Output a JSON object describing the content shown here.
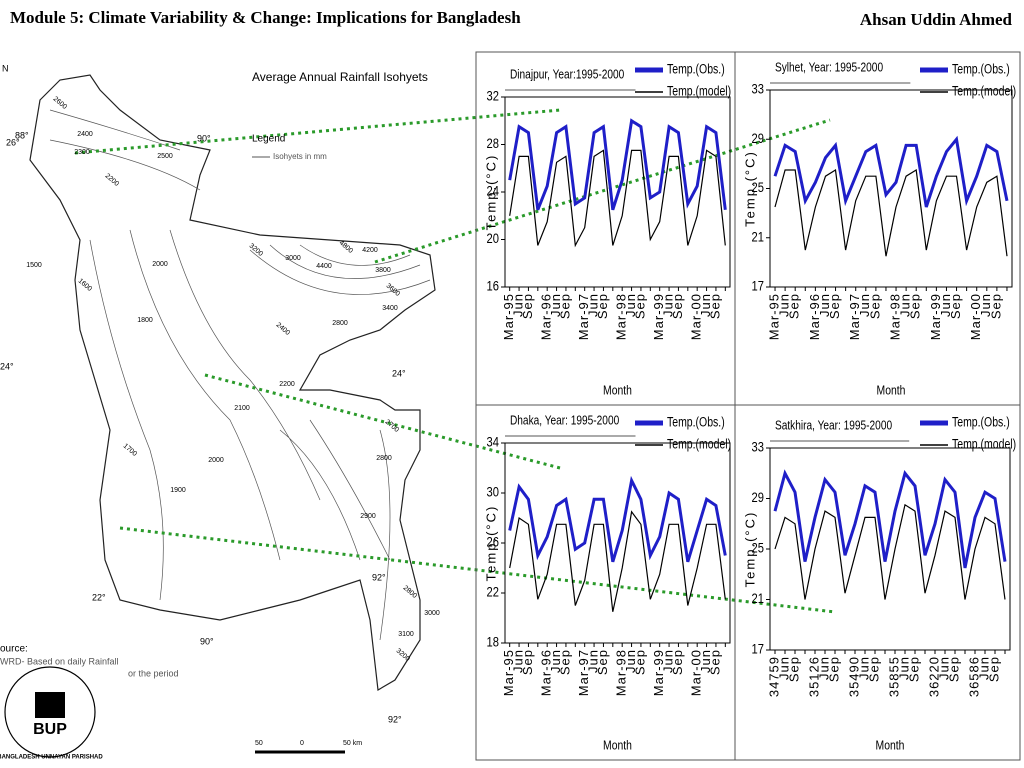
{
  "header": {
    "title": "Module 5: Climate Variability & Change: Implications for Bangladesh",
    "author": "Ahsan Uddin Ahmed"
  },
  "map": {
    "title": "Average Annual Rainfall Isohyets",
    "legend_title": "Legend",
    "legend_item": "Isohyets in mm",
    "source": "ource:",
    "source_line1": "WRD- Based on daily Rainfall",
    "source_line2": "or the period",
    "logo": "BUP",
    "logo_ring": "BANGLADESH UNNAYAN PARISHAD",
    "labels": [
      "2600",
      "2400",
      "2300",
      "2200",
      "2500",
      "1500",
      "1600",
      "1800",
      "2000",
      "3200",
      "3000",
      "4400",
      "4800",
      "4200",
      "3800",
      "3600",
      "3400",
      "2800",
      "2400",
      "2200",
      "2100",
      "1700",
      "1900",
      "2000",
      "2700",
      "2800",
      "2900",
      "2800",
      "3000",
      "3100",
      "3200"
    ],
    "coords": [
      "26°",
      "88°",
      "90°",
      "24°",
      "24°",
      "22°",
      "90°",
      "92°",
      "92°",
      "N"
    ],
    "scale": [
      "50",
      "0",
      "50 km"
    ]
  },
  "chart_data": [
    {
      "type": "line",
      "title": "Dinajpur, Year:1995-2000",
      "xlabel": "Month",
      "ylabel": "Temp.(°C)",
      "categories": [
        "Mar-95",
        "Jun",
        "Sep",
        null,
        "Mar-96",
        "Jun",
        "Sep",
        null,
        "Mar-97",
        "Jun",
        "Sep",
        null,
        "Mar-98",
        "Jun",
        "Sep",
        null,
        "Mar-99",
        "Jun",
        "Sep",
        null,
        "Mar-00",
        "Jun",
        "Sep",
        null
      ],
      "ylim": [
        16,
        32
      ],
      "yticks": [
        16,
        20,
        24,
        28,
        32
      ],
      "legend": "upper right",
      "series": [
        {
          "name": "Temp.(Obs.)",
          "color": "#1f1fc8",
          "values": [
            25,
            29.5,
            29,
            22.5,
            24.5,
            29,
            29.5,
            23,
            23.5,
            29,
            29.5,
            22.5,
            25,
            30,
            29.5,
            23.5,
            24,
            29.5,
            29,
            23,
            24.5,
            29.5,
            29,
            22.5
          ]
        },
        {
          "name": "Temp.(model)",
          "color": "#000000",
          "values": [
            22,
            27,
            27,
            19.5,
            21.5,
            26.5,
            27,
            19.5,
            21,
            27,
            27.5,
            19.5,
            22,
            27.5,
            27.5,
            20,
            21.5,
            27,
            27,
            19.5,
            22,
            27.5,
            27,
            19.5
          ]
        }
      ]
    },
    {
      "type": "line",
      "title": "Sylhet, Year: 1995-2000",
      "xlabel": "Month",
      "ylabel": "Temp.(°C)",
      "categories": [
        "Mar-95",
        "Jun",
        "Sep",
        null,
        "Mar-96",
        "Jun",
        "Sep",
        null,
        "Mar-97",
        "Jun",
        "Sep",
        null,
        "Mar-98",
        "Jun",
        "Sep",
        null,
        "Mar-99",
        "Jun",
        "Sep",
        null,
        "Mar-00",
        "Jun",
        "Sep",
        null
      ],
      "ylim": [
        17,
        33
      ],
      "yticks": [
        17,
        21,
        25,
        29,
        33
      ],
      "legend": "upper right",
      "series": [
        {
          "name": "Temp.(Obs.)",
          "color": "#1f1fc8",
          "values": [
            26,
            28.5,
            28,
            24,
            25.5,
            27.5,
            28.5,
            24,
            26,
            28,
            28.5,
            24.5,
            25.5,
            28.5,
            28.5,
            23.5,
            26,
            28,
            29,
            24,
            26,
            28.5,
            28,
            24
          ]
        },
        {
          "name": "Temp.(model)",
          "color": "#000000",
          "values": [
            23.5,
            26.5,
            26.5,
            20,
            23.5,
            26,
            26.5,
            20,
            24,
            26,
            26,
            19.5,
            23.5,
            26,
            26.5,
            20,
            24,
            26,
            26,
            20,
            23.5,
            25.5,
            26,
            19.5
          ]
        }
      ]
    },
    {
      "type": "line",
      "title": "Dhaka, Year: 1995-2000",
      "xlabel": "Month",
      "ylabel": "Temp.(°C)",
      "categories": [
        "Mar-95",
        "Jun",
        "Sep",
        null,
        "Mar-96",
        "Jun",
        "Sep",
        null,
        "Mar-97",
        "Jun",
        "Sep",
        null,
        "Mar-98",
        "Jun",
        "Sep",
        null,
        "Mar-99",
        "Jun",
        "Sep",
        null,
        "Mar-00",
        "Jun",
        "Sep",
        null
      ],
      "ylim": [
        18,
        34
      ],
      "yticks": [
        18,
        22,
        26,
        30,
        34
      ],
      "legend": "upper right",
      "series": [
        {
          "name": "Temp.(Obs.)",
          "color": "#1f1fc8",
          "values": [
            27,
            30.5,
            29.5,
            25,
            26.5,
            29,
            29.5,
            25.5,
            26,
            29.5,
            29.5,
            24.5,
            27,
            31,
            29.5,
            25,
            26.5,
            30,
            29.5,
            24.5,
            27,
            29.5,
            29,
            25
          ]
        },
        {
          "name": "Temp.(model)",
          "color": "#000000",
          "values": [
            24,
            28,
            27.5,
            21.5,
            23.5,
            27.5,
            27.5,
            21,
            23,
            27.5,
            27.5,
            20.5,
            24,
            28.5,
            27.5,
            21.5,
            23.5,
            27.5,
            27.5,
            21,
            24,
            27.5,
            27.5,
            21.5
          ]
        }
      ]
    },
    {
      "type": "line",
      "title": "Satkhira, Year: 1995-2000",
      "xlabel": "Month",
      "ylabel": "Temp.(°C)",
      "categories": [
        "34759",
        "Jun",
        "Sep",
        null,
        "35126",
        "Jun",
        "Sep",
        null,
        "35490",
        "Jun",
        "Sep",
        null,
        "35855",
        "Jun",
        "Sep",
        null,
        "36220",
        "Jun",
        "Sep",
        null,
        "36586",
        "Jun",
        "Sep",
        null
      ],
      "ylim": [
        17,
        33
      ],
      "yticks": [
        17,
        21,
        25,
        29,
        33
      ],
      "legend": "upper right",
      "series": [
        {
          "name": "Temp.(Obs.)",
          "color": "#1f1fc8",
          "values": [
            28,
            31,
            29.5,
            24,
            27.5,
            30.5,
            29.5,
            24.5,
            27,
            30,
            29.5,
            24,
            28,
            31,
            30,
            24.5,
            27,
            30.5,
            29.5,
            23.5,
            27.5,
            29.5,
            29,
            24
          ]
        },
        {
          "name": "Temp.(model)",
          "color": "#000000",
          "values": [
            25,
            27.5,
            27,
            21,
            25,
            28,
            27.5,
            21.5,
            24.5,
            27.5,
            27.5,
            21,
            25,
            28.5,
            28,
            21.5,
            24.5,
            28,
            27.5,
            21,
            25,
            27.5,
            27,
            21
          ]
        }
      ]
    }
  ]
}
